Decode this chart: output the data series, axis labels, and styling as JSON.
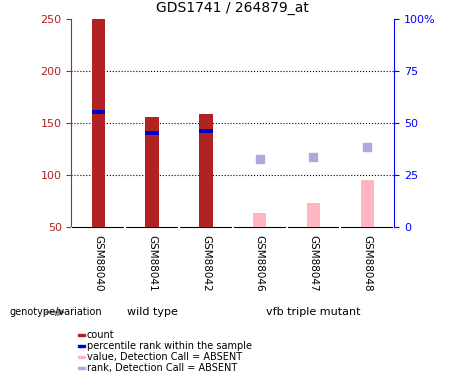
{
  "title": "GDS1741 / 264879_at",
  "samples": [
    "GSM88040",
    "GSM88041",
    "GSM88042",
    "GSM88046",
    "GSM88047",
    "GSM88048"
  ],
  "count_values": [
    250,
    156,
    158,
    null,
    null,
    null
  ],
  "count_color": "#B22222",
  "percentile_values": [
    160,
    140,
    142,
    null,
    null,
    null
  ],
  "percentile_color": "#0000CD",
  "absent_value": [
    null,
    null,
    null,
    63,
    73,
    95
  ],
  "absent_value_color": "#FFB6C1",
  "absent_rank": [
    null,
    null,
    null,
    115,
    117,
    127
  ],
  "absent_rank_color": "#AAAADD",
  "ylim_left": [
    50,
    250
  ],
  "ylim_right": [
    0,
    100
  ],
  "yticks_left": [
    50,
    100,
    150,
    200,
    250
  ],
  "yticks_right": [
    0,
    25,
    50,
    75,
    100
  ],
  "ytick_labels_right": [
    "0",
    "25",
    "50",
    "75",
    "100%"
  ],
  "bar_width": 0.25,
  "bg_color": "#FFFFFF",
  "grid_color": "#000000",
  "group_names": [
    "wild type",
    "vfb triple mutant"
  ],
  "group_ranges": [
    [
      0,
      2
    ],
    [
      3,
      5
    ]
  ],
  "group_color": "#66FF66",
  "sample_box_color": "#CCCCCC",
  "genotype_label": "genotype/variation",
  "legend_items": [
    {
      "label": "count",
      "color": "#B22222"
    },
    {
      "label": "percentile rank within the sample",
      "color": "#0000CD"
    },
    {
      "label": "value, Detection Call = ABSENT",
      "color": "#FFB6C1"
    },
    {
      "label": "rank, Detection Call = ABSENT",
      "color": "#AAAADD"
    }
  ]
}
